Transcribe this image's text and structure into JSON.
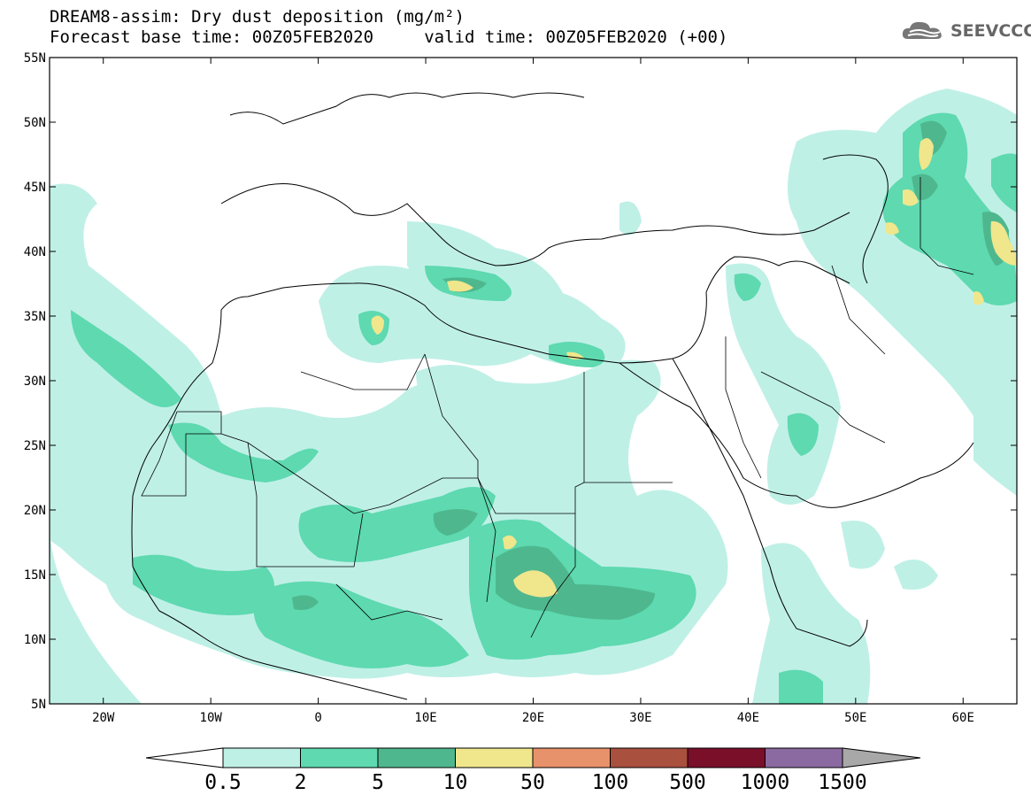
{
  "title": {
    "line1": "DREAM8-assim: Dry dust deposition (mg/m²)",
    "line2": "Forecast base time: 00Z05FEB2020     valid time: 00Z05FEB2020 (+00)"
  },
  "logo": {
    "text": "SEEVCCC",
    "icon": "cloud-logo-icon"
  },
  "axes": {
    "lat_ticks": [
      "55N",
      "50N",
      "45N",
      "40N",
      "35N",
      "30N",
      "25N",
      "20N",
      "15N",
      "10N",
      "5N"
    ],
    "lon_ticks": [
      "20W",
      "10W",
      "0",
      "10E",
      "20E",
      "30E",
      "40E",
      "50E",
      "60E"
    ],
    "lon_range": [
      -25,
      65
    ],
    "lat_range": [
      5,
      55
    ]
  },
  "colorbar": {
    "labels": [
      "0.5",
      "2",
      "5",
      "10",
      "50",
      "100",
      "500",
      "1000",
      "1500"
    ],
    "colors": [
      "#bff0e6",
      "#5ed9b0",
      "#4fb78e",
      "#f0e68c",
      "#e8926b",
      "#a9503f",
      "#7a0f2a",
      "#8b6aa2"
    ],
    "extend_low_color": "#ffffff",
    "extend_high_color": "#a8a8a8"
  },
  "map_colors": {
    "light": "#bff0e6",
    "mid": "#5ed9b0",
    "dark": "#4fb78e",
    "yellow": "#f0e68c",
    "border": "#000000"
  }
}
